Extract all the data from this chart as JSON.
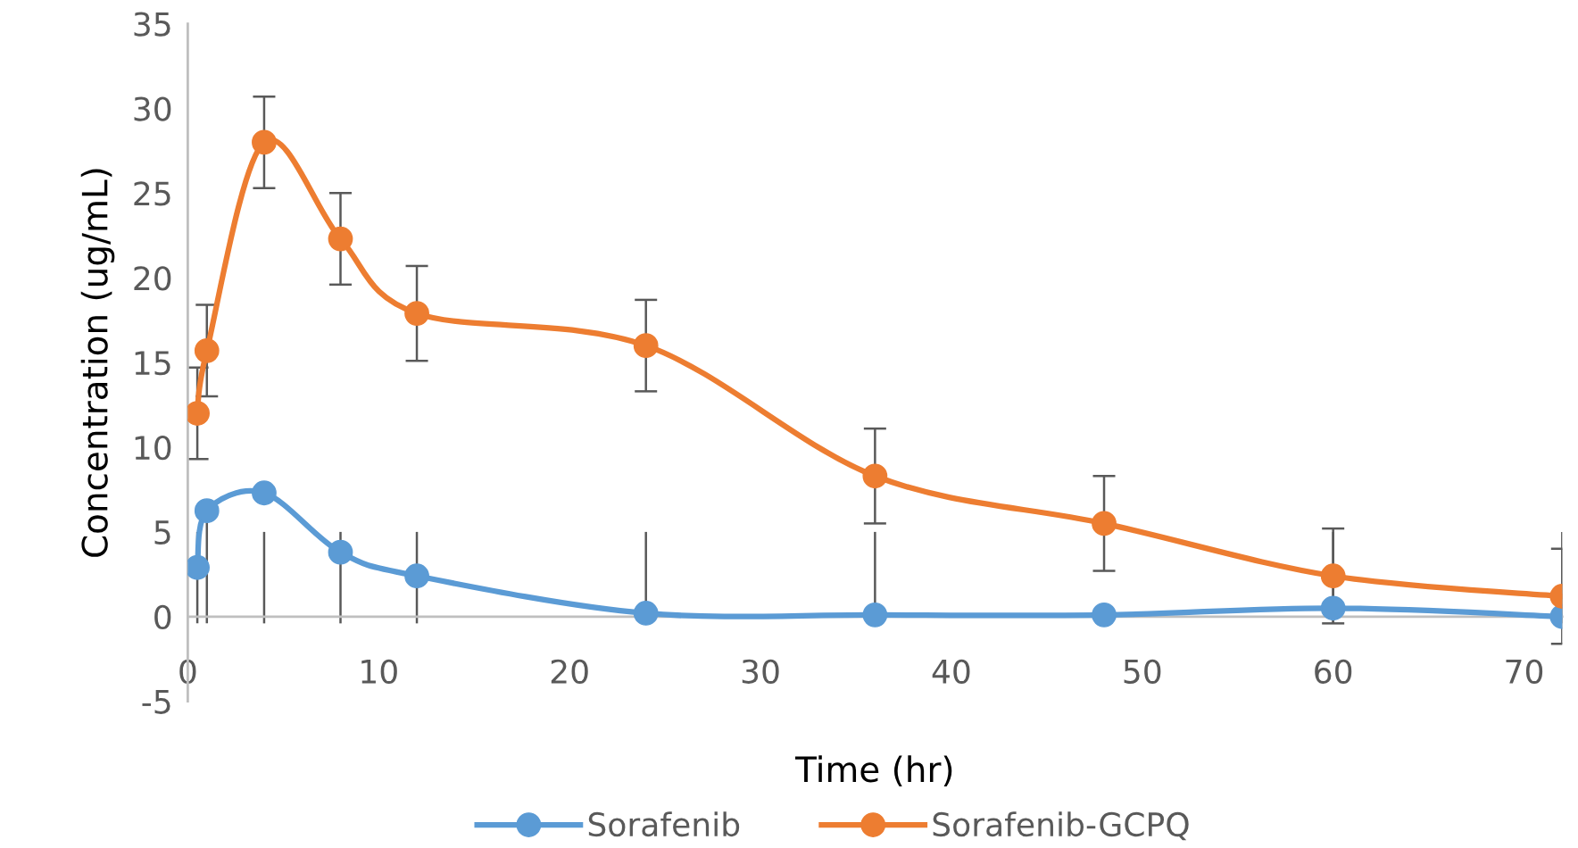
{
  "chart_data": {
    "type": "line",
    "xlabel": "Time (hr)",
    "ylabel": "Concentration (ug/mL)",
    "x": [
      0.5,
      1,
      4,
      8,
      12,
      24,
      36,
      48,
      60,
      72
    ],
    "series": [
      {
        "name": "Sorafenib",
        "color": "#5b9bd5",
        "values": [
          2.9,
          6.25,
          7.3,
          3.8,
          2.4,
          0.2,
          0.1,
          0.1,
          0.5,
          0
        ],
        "errors": [
          [
            -0.4,
            5.0
          ],
          [
            -0.4,
            6.25
          ],
          [
            -0.4,
            5.0
          ],
          [
            -0.4,
            5.0
          ],
          [
            -0.4,
            5.0
          ],
          [
            -0.4,
            5.0
          ],
          [
            0.1,
            5.0
          ],
          null,
          [
            -0.4,
            5.0
          ],
          [
            -0.4,
            5.0
          ]
        ]
      },
      {
        "name": "Sorafenib-GCPQ",
        "color": "#ed7d31",
        "values": [
          12.0,
          15.7,
          28.0,
          22.3,
          17.9,
          16.0,
          8.3,
          5.5,
          2.4,
          1.2
        ],
        "errors": [
          2.7,
          2.7,
          2.7,
          2.7,
          2.8,
          2.7,
          2.8,
          2.8,
          2.8,
          2.8
        ]
      }
    ],
    "xlim": [
      0,
      72
    ],
    "xticks": [
      0,
      10,
      20,
      30,
      40,
      50,
      60,
      70
    ],
    "ylim": [
      -5,
      35
    ],
    "yticks": [
      -5,
      0,
      5,
      10,
      15,
      20,
      25,
      30,
      35
    ],
    "grid": false,
    "legend": "bottom",
    "marker": "circle",
    "line_style": "solid"
  }
}
